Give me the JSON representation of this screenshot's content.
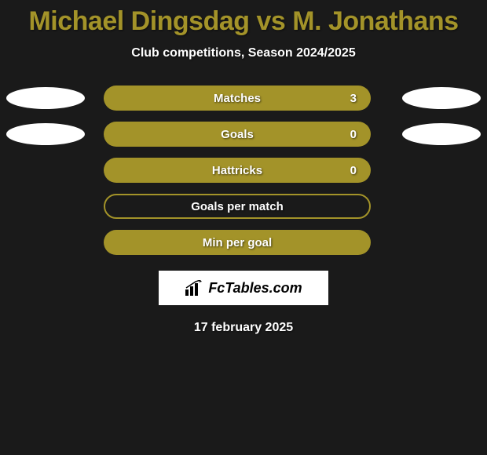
{
  "title": "Michael Dingsdag vs M. Jonathans",
  "title_color": "#a39329",
  "subtitle": "Club competitions, Season 2024/2025",
  "background_color": "#1a1a1a",
  "bar_color": "#a39329",
  "oval_color": "#ffffff",
  "text_color": "#ffffff",
  "stats": [
    {
      "label": "Matches",
      "value": "3",
      "style": "solid",
      "show_left_oval": true,
      "show_right_oval": true
    },
    {
      "label": "Goals",
      "value": "0",
      "style": "solid",
      "show_left_oval": true,
      "show_right_oval": true
    },
    {
      "label": "Hattricks",
      "value": "0",
      "style": "solid",
      "show_left_oval": false,
      "show_right_oval": false
    },
    {
      "label": "Goals per match",
      "value": "",
      "style": "outline",
      "show_left_oval": false,
      "show_right_oval": false
    },
    {
      "label": "Min per goal",
      "value": "",
      "style": "solid",
      "show_left_oval": false,
      "show_right_oval": false
    }
  ],
  "logo_text": "FcTables.com",
  "date": "17 february 2025"
}
